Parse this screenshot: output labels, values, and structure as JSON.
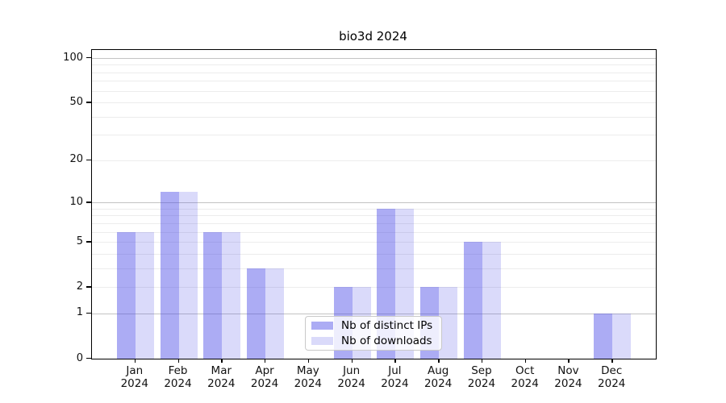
{
  "chart_data": {
    "type": "bar",
    "title": "bio3d 2024",
    "categories": [
      {
        "month": "Jan",
        "year": "2024"
      },
      {
        "month": "Feb",
        "year": "2024"
      },
      {
        "month": "Mar",
        "year": "2024"
      },
      {
        "month": "Apr",
        "year": "2024"
      },
      {
        "month": "May",
        "year": "2024"
      },
      {
        "month": "Jun",
        "year": "2024"
      },
      {
        "month": "Jul",
        "year": "2024"
      },
      {
        "month": "Aug",
        "year": "2024"
      },
      {
        "month": "Sep",
        "year": "2024"
      },
      {
        "month": "Oct",
        "year": "2024"
      },
      {
        "month": "Nov",
        "year": "2024"
      },
      {
        "month": "Dec",
        "year": "2024"
      }
    ],
    "series": [
      {
        "name": "Nb of distinct IPs",
        "color": "rgba(70,70,230,0.45)",
        "color_on_white": "#a6a6f4",
        "values": [
          6,
          12,
          6,
          3,
          0,
          2,
          9,
          2,
          5,
          0,
          0,
          1
        ]
      },
      {
        "name": "Nb of downloads",
        "color": "rgba(70,70,230,0.20)",
        "color_on_white": "#d9d9fa",
        "values": [
          6,
          12,
          6,
          3,
          0,
          2,
          9,
          2,
          5,
          0,
          0,
          1
        ]
      }
    ],
    "y_axis": {
      "scale": "log1p",
      "ticks": [
        0,
        1,
        2,
        5,
        10,
        20,
        50,
        100
      ],
      "range": [
        0,
        113
      ]
    },
    "grid": {
      "major": [
        1,
        10,
        100
      ],
      "minor": [
        2,
        3,
        4,
        5,
        6,
        7,
        8,
        9,
        20,
        30,
        40,
        50,
        60,
        70,
        80,
        90
      ],
      "major_color": "#c3c3c3",
      "minor_color": "#ececec"
    },
    "legend": {
      "position": "lower-center-inside"
    },
    "xlabel": "",
    "ylabel": ""
  }
}
